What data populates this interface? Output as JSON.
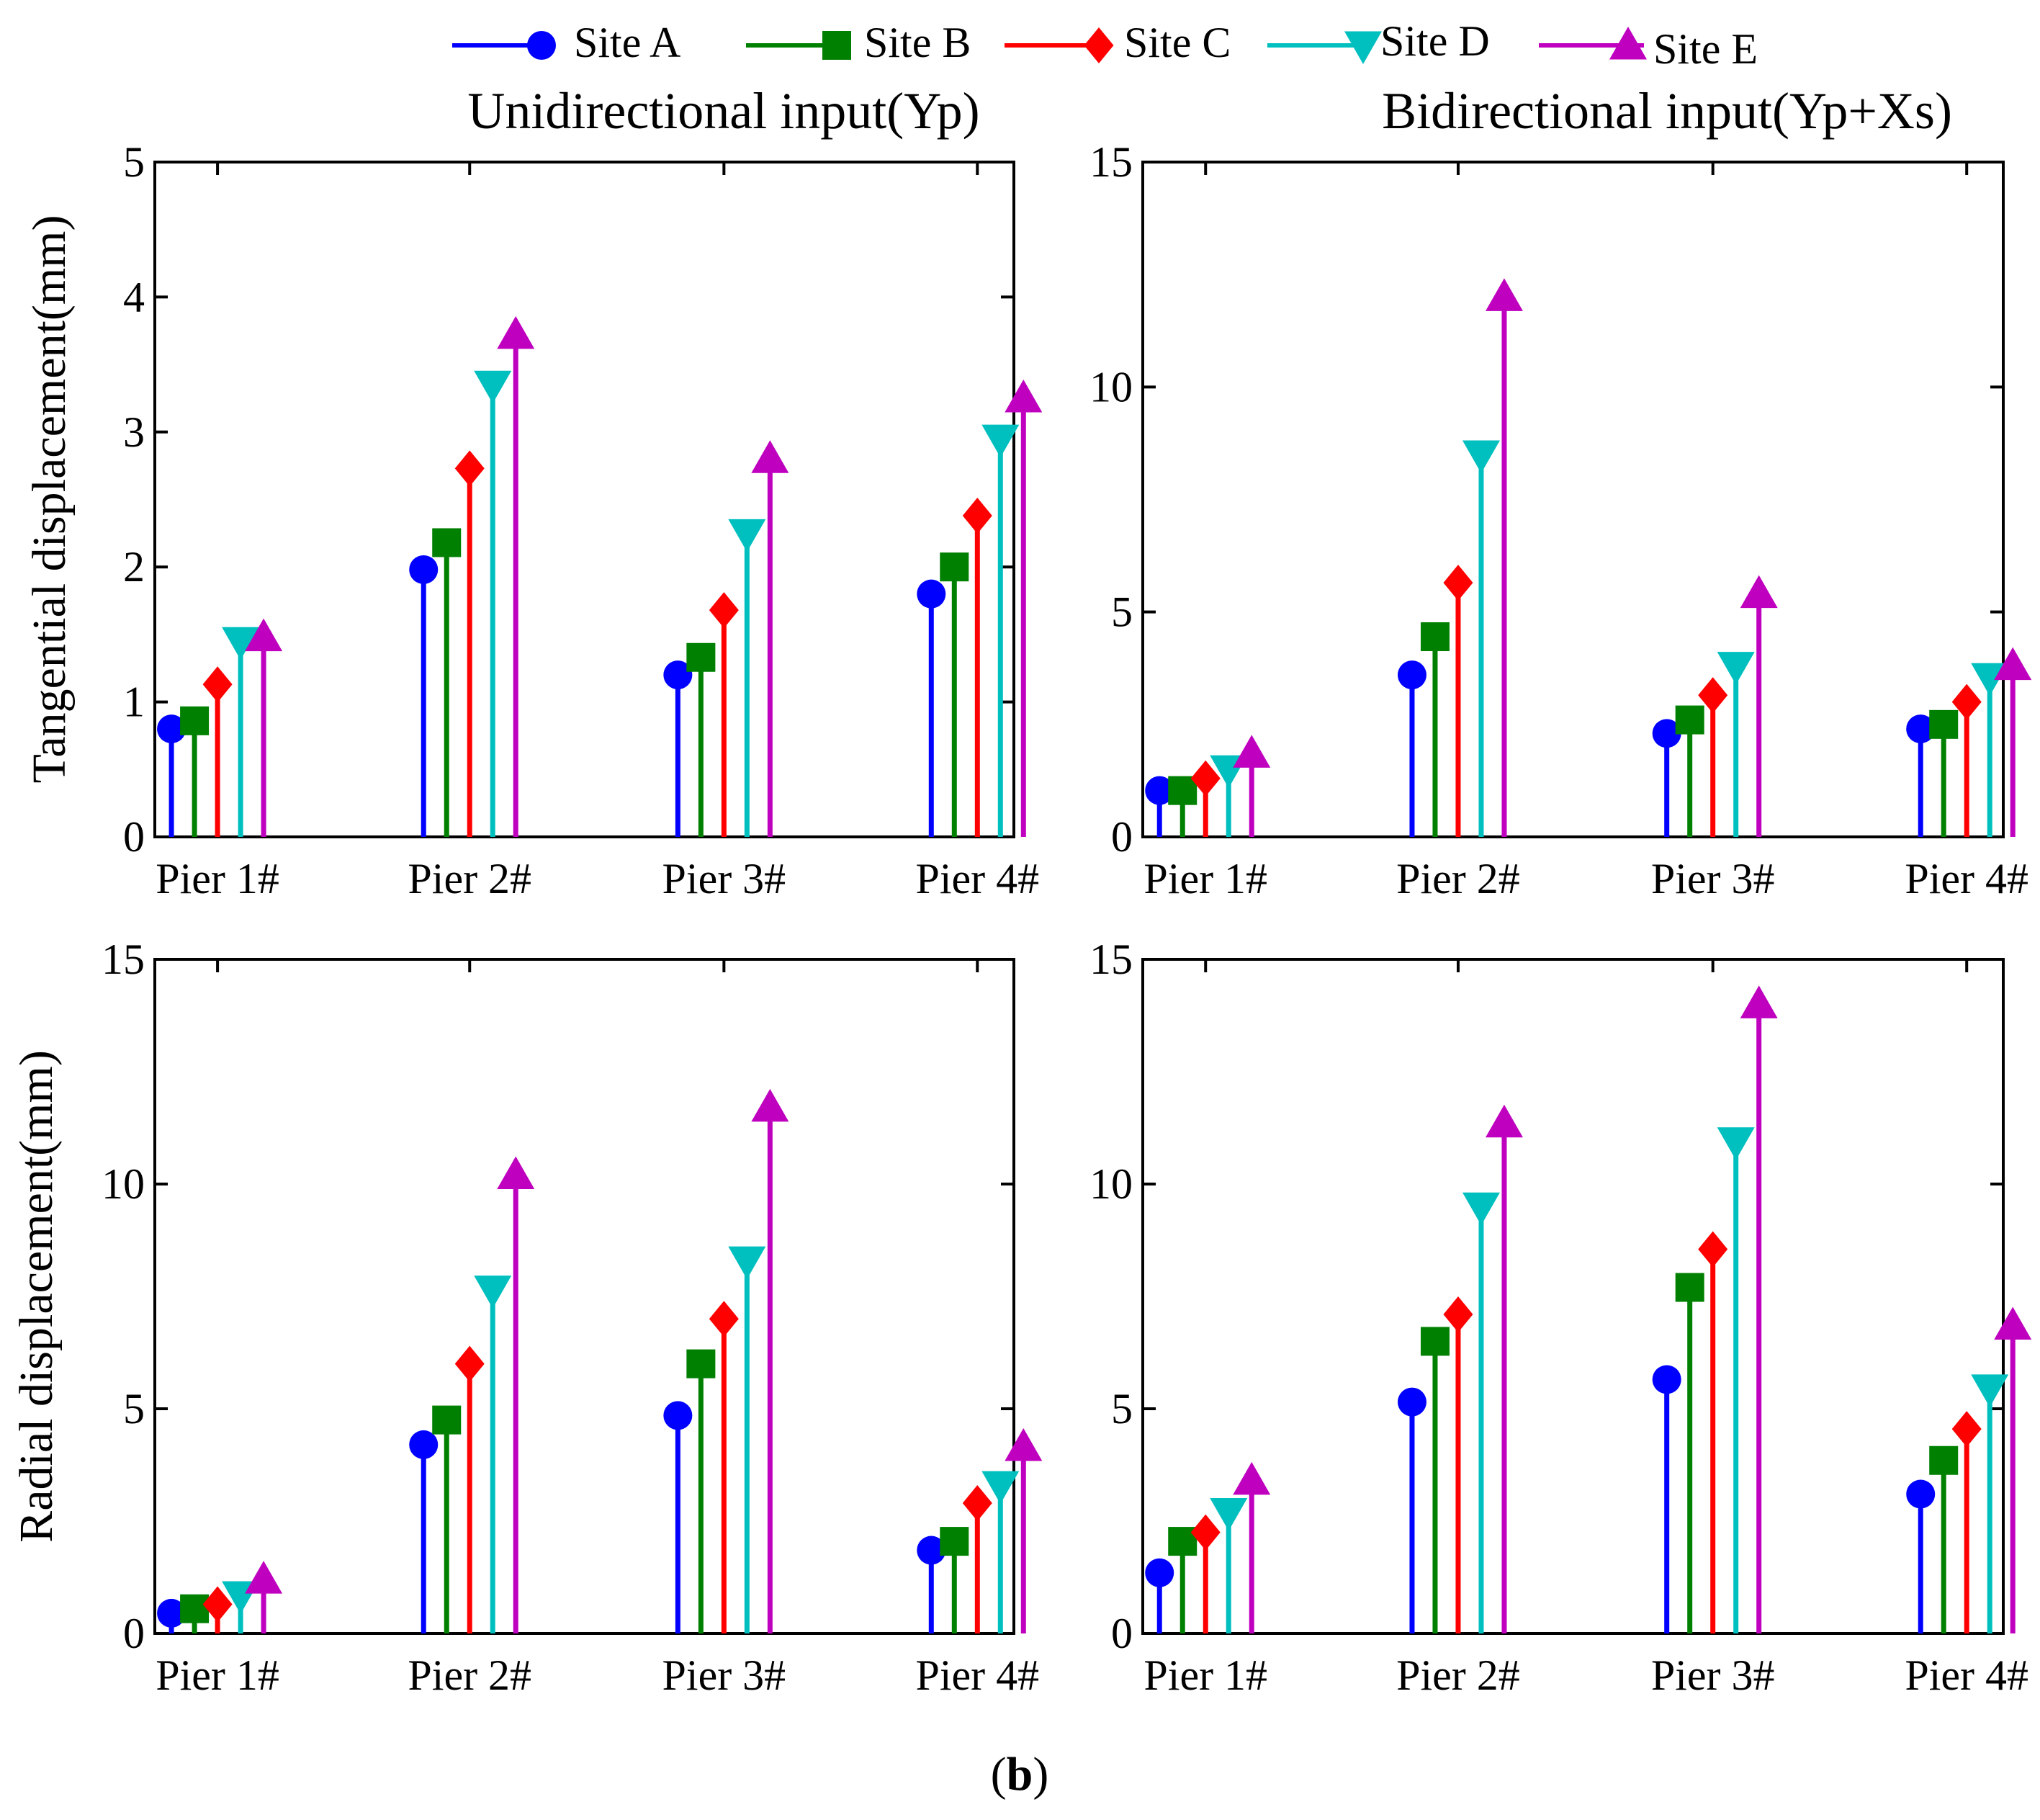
{
  "legend": [
    {
      "name": "Site A",
      "color": "#0000ff",
      "marker": "circle"
    },
    {
      "name": "Site B",
      "color": "#008000",
      "marker": "square"
    },
    {
      "name": "Site C",
      "color": "#ff0000",
      "marker": "diamond"
    },
    {
      "name": "Site D",
      "color": "#00bfbf",
      "marker": "triangle-down"
    },
    {
      "name": "Site E",
      "color": "#bf00bf",
      "marker": "triangle-up"
    }
  ],
  "column_titles": [
    "Unidirectional input(Yp)",
    "Bidirectional input(Yp+Xs)"
  ],
  "row_labels": [
    "Tangential displacement(mm)",
    "Radial displacement(mm)"
  ],
  "caption": {
    "open": "(",
    "bold": "b",
    "close": ")"
  },
  "chart_data": [
    {
      "type": "stem",
      "title": "Unidirectional input(Yp)",
      "ylabel": "Tangential displacement(mm)",
      "categories": [
        "Pier 1#",
        "Pier 2#",
        "Pier 3#",
        "Pier 4#"
      ],
      "ylim": [
        0,
        5
      ],
      "yticks": [
        0,
        1,
        2,
        3,
        4,
        5
      ],
      "series": [
        {
          "name": "Site A",
          "values": [
            0.8,
            1.98,
            1.2,
            1.8
          ]
        },
        {
          "name": "Site B",
          "values": [
            0.86,
            2.18,
            1.33,
            2.0
          ]
        },
        {
          "name": "Site C",
          "values": [
            1.13,
            2.73,
            1.68,
            2.38
          ]
        },
        {
          "name": "Site D",
          "values": [
            1.45,
            3.35,
            2.25,
            2.95
          ]
        },
        {
          "name": "Site E",
          "values": [
            1.48,
            3.72,
            2.8,
            3.25
          ]
        }
      ]
    },
    {
      "type": "stem",
      "title": "Bidirectional input(Yp+Xs)",
      "ylabel": "",
      "categories": [
        "Pier 1#",
        "Pier 2#",
        "Pier 3#",
        "Pier 4#"
      ],
      "ylim": [
        0,
        15
      ],
      "yticks": [
        0,
        5,
        10,
        15
      ],
      "series": [
        {
          "name": "Site A",
          "values": [
            1.03,
            3.6,
            2.3,
            2.4
          ]
        },
        {
          "name": "Site B",
          "values": [
            1.03,
            4.45,
            2.6,
            2.5
          ]
        },
        {
          "name": "Site C",
          "values": [
            1.3,
            5.65,
            3.15,
            3.0
          ]
        },
        {
          "name": "Site D",
          "values": [
            1.5,
            8.5,
            3.8,
            3.55
          ]
        },
        {
          "name": "Site E",
          "values": [
            1.85,
            12.0,
            5.4,
            3.8
          ]
        }
      ]
    },
    {
      "type": "stem",
      "title": "",
      "ylabel": "Radial displacement(mm)",
      "categories": [
        "Pier 1#",
        "Pier 2#",
        "Pier 3#",
        "Pier 4#"
      ],
      "ylim": [
        0,
        15
      ],
      "yticks": [
        0,
        5,
        10,
        15
      ],
      "series": [
        {
          "name": "Site A",
          "values": [
            0.45,
            4.2,
            4.85,
            1.85
          ]
        },
        {
          "name": "Site B",
          "values": [
            0.55,
            4.75,
            6.0,
            2.05
          ]
        },
        {
          "name": "Site C",
          "values": [
            0.65,
            6.0,
            7.0,
            2.9
          ]
        },
        {
          "name": "Site D",
          "values": [
            0.85,
            7.65,
            8.3,
            3.3
          ]
        },
        {
          "name": "Site E",
          "values": [
            1.2,
            10.2,
            11.7,
            4.15
          ]
        }
      ]
    },
    {
      "type": "stem",
      "title": "",
      "ylabel": "",
      "categories": [
        "Pier 1#",
        "Pier 2#",
        "Pier 3#",
        "Pier 4#"
      ],
      "ylim": [
        0,
        15
      ],
      "yticks": [
        0,
        5,
        10,
        15
      ],
      "series": [
        {
          "name": "Site A",
          "values": [
            1.35,
            5.15,
            5.65,
            3.1
          ]
        },
        {
          "name": "Site B",
          "values": [
            2.05,
            6.5,
            7.7,
            3.85
          ]
        },
        {
          "name": "Site C",
          "values": [
            2.25,
            7.1,
            8.55,
            4.55
          ]
        },
        {
          "name": "Site D",
          "values": [
            2.7,
            9.5,
            10.95,
            5.45
          ]
        },
        {
          "name": "Site E",
          "values": [
            3.4,
            11.35,
            14.0,
            6.85
          ]
        }
      ]
    }
  ]
}
